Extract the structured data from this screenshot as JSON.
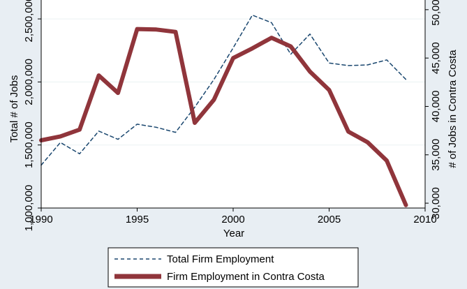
{
  "chart_data": {
    "type": "line",
    "xlabel": "Year",
    "ylabel_left": "Total # of Jobs",
    "ylabel_right": "# of Jobs in Contra Costa",
    "xlim": [
      1990,
      2010
    ],
    "ylim_left": [
      1000000,
      2650000
    ],
    "ylim_right": [
      29500,
      51000
    ],
    "x_ticks": [
      1990,
      1995,
      2000,
      2005,
      2010
    ],
    "x_tick_labels": [
      "1990",
      "1995",
      "2000",
      "2005",
      "2010"
    ],
    "y_left_ticks": [
      1000000,
      1500000,
      2000000,
      2500000
    ],
    "y_left_tick_labels": [
      "1,000,000",
      "1,500,000",
      "2,000,000",
      "2,500,000"
    ],
    "y_right_ticks": [
      30000,
      35000,
      40000,
      45000,
      50000
    ],
    "y_right_tick_labels": [
      "30,000",
      "35,000",
      "40,000",
      "45,000",
      "50,000"
    ],
    "grid": "horizontal",
    "legend_position": "bottom",
    "x": [
      1990,
      1991,
      1992,
      1993,
      1994,
      1995,
      1996,
      1997,
      1998,
      1999,
      2000,
      2001,
      2002,
      2003,
      2004,
      2005,
      2006,
      2007,
      2008,
      2009
    ],
    "series": [
      {
        "name": "Total Firm Employment",
        "axis": "left",
        "style": "dashed",
        "color": "#1a476f",
        "values": [
          1340000,
          1520000,
          1430000,
          1610000,
          1545000,
          1665000,
          1640000,
          1600000,
          1800000,
          2020000,
          2270000,
          2530000,
          2470000,
          2220000,
          2380000,
          2150000,
          2130000,
          2135000,
          2175000,
          2020000
        ]
      },
      {
        "name": "Firm Employment in Contra Costa",
        "axis": "right",
        "style": "solid",
        "color": "#90353b",
        "values": [
          36500,
          36900,
          37600,
          43200,
          41400,
          48000,
          47950,
          47700,
          38300,
          40700,
          45000,
          46000,
          47100,
          46200,
          43600,
          41700,
          37400,
          36300,
          34400,
          29800
        ]
      }
    ]
  }
}
